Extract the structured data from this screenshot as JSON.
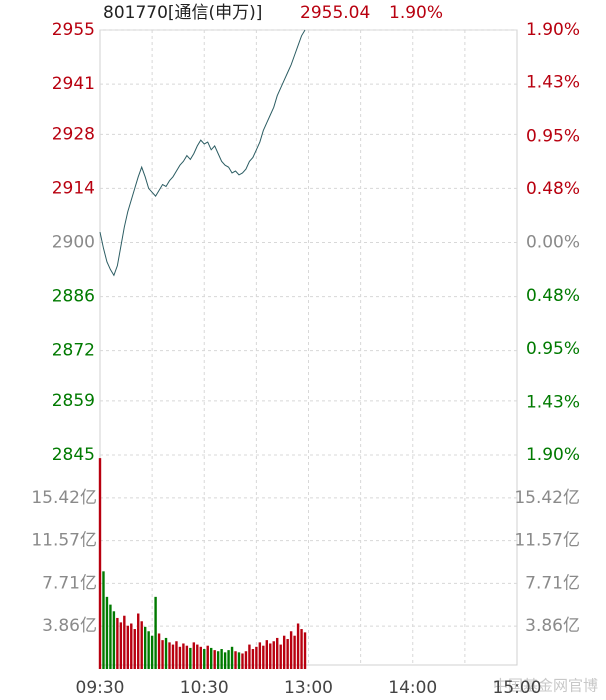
{
  "chart_data": [
    {
      "type": "line",
      "title": "801770[通信(申万)]",
      "last_price": "2955.04",
      "last_change": "1.90%",
      "x": [
        0,
        2,
        4,
        6,
        8,
        10,
        12,
        14,
        16,
        18,
        20,
        22,
        24,
        26,
        28,
        30,
        32,
        34,
        36,
        38,
        40,
        42,
        44,
        46,
        48,
        50,
        52,
        54,
        56,
        58,
        60,
        62,
        64,
        66,
        68,
        70,
        72,
        74,
        76,
        78,
        80,
        82,
        84,
        86,
        88,
        90,
        92,
        94,
        96,
        98,
        100,
        102,
        104,
        106,
        108,
        110,
        112,
        114,
        116,
        118
      ],
      "xlim": [
        0,
        240
      ],
      "xticks": [
        {
          "value": 0,
          "label": "09:30"
        },
        {
          "value": 60,
          "label": "10:30"
        },
        {
          "value": 120,
          "label": "13:00"
        },
        {
          "value": 180,
          "label": "14:00"
        },
        {
          "value": 240,
          "label": "15:00"
        }
      ],
      "series": [
        {
          "color": "#2c5d63",
          "values": [
            2902.7,
            2898.5,
            2895,
            2893,
            2891.5,
            2894,
            2899,
            2904,
            2908,
            2911,
            2914,
            2917,
            2919.5,
            2917,
            2914,
            2913,
            2912,
            2913.5,
            2915,
            2914.5,
            2916,
            2917,
            2918.5,
            2920,
            2921,
            2922.5,
            2921.5,
            2923,
            2925,
            2926.5,
            2925.5,
            2926,
            2924,
            2925,
            2923,
            2921,
            2920,
            2919.5,
            2918,
            2918.5,
            2917.5,
            2918,
            2919,
            2921,
            2922,
            2924,
            2926,
            2929,
            2931,
            2933,
            2935,
            2938,
            2940,
            2942,
            2944,
            2946,
            2948.5,
            2951,
            2953.5,
            2955
          ]
        }
      ],
      "ylim": [
        2845,
        2955
      ],
      "yticks": [
        2955,
        2941,
        2928,
        2914,
        2900,
        2886,
        2872,
        2859,
        2845
      ],
      "y2lim": [
        -1.9,
        1.9
      ],
      "y2ticks": [
        {
          "value": 1.9,
          "label": "1.90%"
        },
        {
          "value": 1.43,
          "label": "1.43%"
        },
        {
          "value": 0.95,
          "label": "0.95%"
        },
        {
          "value": 0.48,
          "label": "0.48%"
        },
        {
          "value": 0.0,
          "label": "0.00%"
        },
        {
          "value": -0.48,
          "label": "0.48%"
        },
        {
          "value": -0.95,
          "label": "0.95%"
        },
        {
          "value": -1.43,
          "label": "1.43%"
        },
        {
          "value": -1.9,
          "label": "1.90%"
        }
      ],
      "up_color": "#b8000f",
      "down_color": "#007a00",
      "flat_color": "#8a8a8a",
      "grid": true
    },
    {
      "type": "bar",
      "x": [
        0,
        2,
        4,
        6,
        8,
        10,
        12,
        14,
        16,
        18,
        20,
        22,
        24,
        26,
        28,
        30,
        32,
        34,
        36,
        38,
        40,
        42,
        44,
        46,
        48,
        50,
        52,
        54,
        56,
        58,
        60,
        62,
        64,
        66,
        68,
        70,
        72,
        74,
        76,
        78,
        80,
        82,
        84,
        86,
        88,
        90,
        92,
        94,
        96,
        98,
        100,
        102,
        104,
        106,
        108,
        110,
        112,
        114,
        116,
        118
      ],
      "xlim": [
        0,
        240
      ],
      "values": [
        19.0,
        8.8,
        6.5,
        5.8,
        5.2,
        4.6,
        4.2,
        4.8,
        3.9,
        4.1,
        3.6,
        5.0,
        4.3,
        3.8,
        3.4,
        3.0,
        6.5,
        3.2,
        2.6,
        2.8,
        2.4,
        2.2,
        2.5,
        2.0,
        2.3,
        2.1,
        1.9,
        2.4,
        2.2,
        2.0,
        1.8,
        2.1,
        1.9,
        1.7,
        1.6,
        1.8,
        1.5,
        1.7,
        2.0,
        1.6,
        1.5,
        1.4,
        1.6,
        2.2,
        1.8,
        2.0,
        2.4,
        2.1,
        2.6,
        2.3,
        2.5,
        2.8,
        2.2,
        3.0,
        2.7,
        3.4,
        3.0,
        4.1,
        3.6,
        3.3
      ],
      "ylim": [
        0,
        19.28
      ],
      "yticks": [
        {
          "value": 15.42,
          "label": "15.42亿"
        },
        {
          "value": 11.57,
          "label": "11.57亿"
        },
        {
          "value": 7.71,
          "label": "7.71亿"
        },
        {
          "value": 3.86,
          "label": "3.86亿"
        }
      ],
      "tick_color": "#8a8a8a",
      "grid": true
    }
  ],
  "watermark": "中国基金网官博"
}
